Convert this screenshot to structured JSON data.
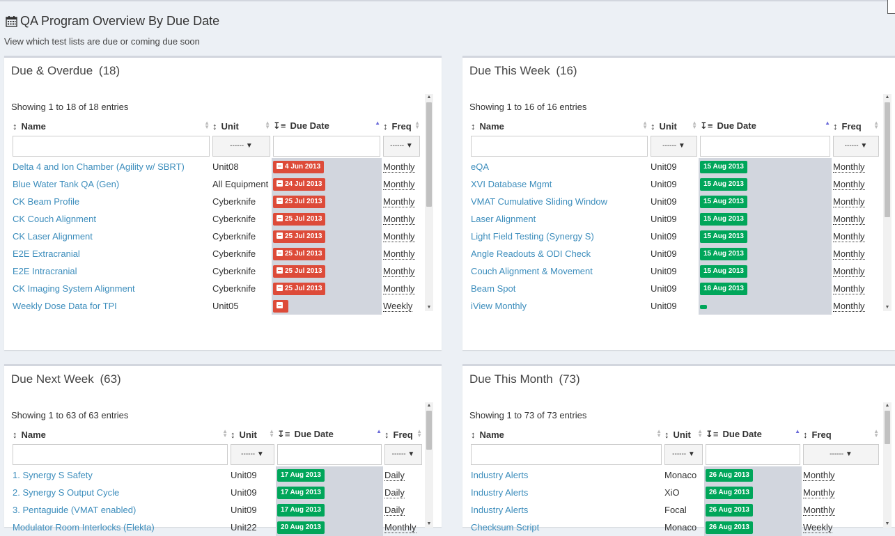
{
  "page": {
    "title": "QA Program Overview By Due Date",
    "subtitle": "View which test lists are due or coming due soon"
  },
  "columns": {
    "name": "Name",
    "unit": "Unit",
    "due": "Due Date",
    "freq": "Freq",
    "filter_placeholder": "------"
  },
  "panels": [
    {
      "title": "Due & Overdue",
      "count": "(18)",
      "showing": "Showing 1 to 18 of 18 entries",
      "rows": [
        {
          "name": "Delta 4 and Ion Chamber (Agility w/ SBRT)",
          "unit": "Unit08",
          "due": "4 Jun 2013",
          "status": "overdue",
          "freq": "Monthly"
        },
        {
          "name": "Blue Water Tank QA (Gen)",
          "unit": "All Equipment",
          "due": "24 Jul 2013",
          "status": "overdue",
          "freq": "Monthly"
        },
        {
          "name": "CK Beam Profile",
          "unit": "Cyberknife",
          "due": "25 Jul 2013",
          "status": "overdue",
          "freq": "Monthly"
        },
        {
          "name": "CK Couch Alignment",
          "unit": "Cyberknife",
          "due": "25 Jul 2013",
          "status": "overdue",
          "freq": "Monthly"
        },
        {
          "name": "CK Laser Alignment",
          "unit": "Cyberknife",
          "due": "25 Jul 2013",
          "status": "overdue",
          "freq": "Monthly"
        },
        {
          "name": "E2E Extracranial",
          "unit": "Cyberknife",
          "due": "25 Jul 2013",
          "status": "overdue",
          "freq": "Monthly"
        },
        {
          "name": "E2E Intracranial",
          "unit": "Cyberknife",
          "due": "25 Jul 2013",
          "status": "overdue",
          "freq": "Monthly"
        },
        {
          "name": "CK Imaging System Alignment",
          "unit": "Cyberknife",
          "due": "25 Jul 2013",
          "status": "overdue",
          "freq": "Monthly"
        },
        {
          "name": "Weekly Dose Data for TPI",
          "unit": "Unit05",
          "due": "",
          "status": "overdue",
          "freq": "Weekly"
        }
      ]
    },
    {
      "title": "Due This Week",
      "count": "(16)",
      "showing": "Showing 1 to 16 of 16 entries",
      "rows": [
        {
          "name": "eQA",
          "unit": "Unit09",
          "due": "15 Aug 2013",
          "status": "ok",
          "freq": "Monthly"
        },
        {
          "name": "XVI Database Mgmt",
          "unit": "Unit09",
          "due": "15 Aug 2013",
          "status": "ok",
          "freq": "Monthly"
        },
        {
          "name": "VMAT Cumulative Sliding Window",
          "unit": "Unit09",
          "due": "15 Aug 2013",
          "status": "ok",
          "freq": "Monthly"
        },
        {
          "name": "Laser Alignment",
          "unit": "Unit09",
          "due": "15 Aug 2013",
          "status": "ok",
          "freq": "Monthly"
        },
        {
          "name": "Light Field Testing (Synergy S)",
          "unit": "Unit09",
          "due": "15 Aug 2013",
          "status": "ok",
          "freq": "Monthly"
        },
        {
          "name": "Angle Readouts & ODI Check",
          "unit": "Unit09",
          "due": "15 Aug 2013",
          "status": "ok",
          "freq": "Monthly"
        },
        {
          "name": "Couch Alignment & Movement",
          "unit": "Unit09",
          "due": "15 Aug 2013",
          "status": "ok",
          "freq": "Monthly"
        },
        {
          "name": "Beam Spot",
          "unit": "Unit09",
          "due": "16 Aug 2013",
          "status": "ok",
          "freq": "Monthly"
        },
        {
          "name": "iView Monthly",
          "unit": "Unit09",
          "due": "",
          "status": "ok",
          "freq": "Monthly"
        }
      ]
    },
    {
      "title": "Due Next Week",
      "count": "(63)",
      "showing": "Showing 1 to 63 of 63 entries",
      "rows": [
        {
          "name": "1. Synergy S Safety",
          "unit": "Unit09",
          "due": "17 Aug 2013",
          "status": "ok",
          "freq": "Daily"
        },
        {
          "name": "2. Synergy S Output Cycle",
          "unit": "Unit09",
          "due": "17 Aug 2013",
          "status": "ok",
          "freq": "Daily"
        },
        {
          "name": "3. Pentaguide (VMAT enabled)",
          "unit": "Unit09",
          "due": "17 Aug 2013",
          "status": "ok",
          "freq": "Daily"
        },
        {
          "name": "Modulator Room Interlocks (Elekta)",
          "unit": "Unit22",
          "due": "20 Aug 2013",
          "status": "ok",
          "freq": "Monthly"
        }
      ]
    },
    {
      "title": "Due This Month",
      "count": "(73)",
      "showing": "Showing 1 to 73 of 73 entries",
      "rows": [
        {
          "name": "Industry Alerts",
          "unit": "Monaco",
          "due": "26 Aug 2013",
          "status": "ok",
          "freq": "Monthly"
        },
        {
          "name": "Industry Alerts",
          "unit": "XiO",
          "due": "26 Aug 2013",
          "status": "ok",
          "freq": "Monthly"
        },
        {
          "name": "Industry Alerts",
          "unit": "Focal",
          "due": "26 Aug 2013",
          "status": "ok",
          "freq": "Monthly"
        },
        {
          "name": "Checksum Script",
          "unit": "Monaco",
          "due": "26 Aug 2013",
          "status": "ok",
          "freq": "Weekly"
        }
      ]
    }
  ]
}
